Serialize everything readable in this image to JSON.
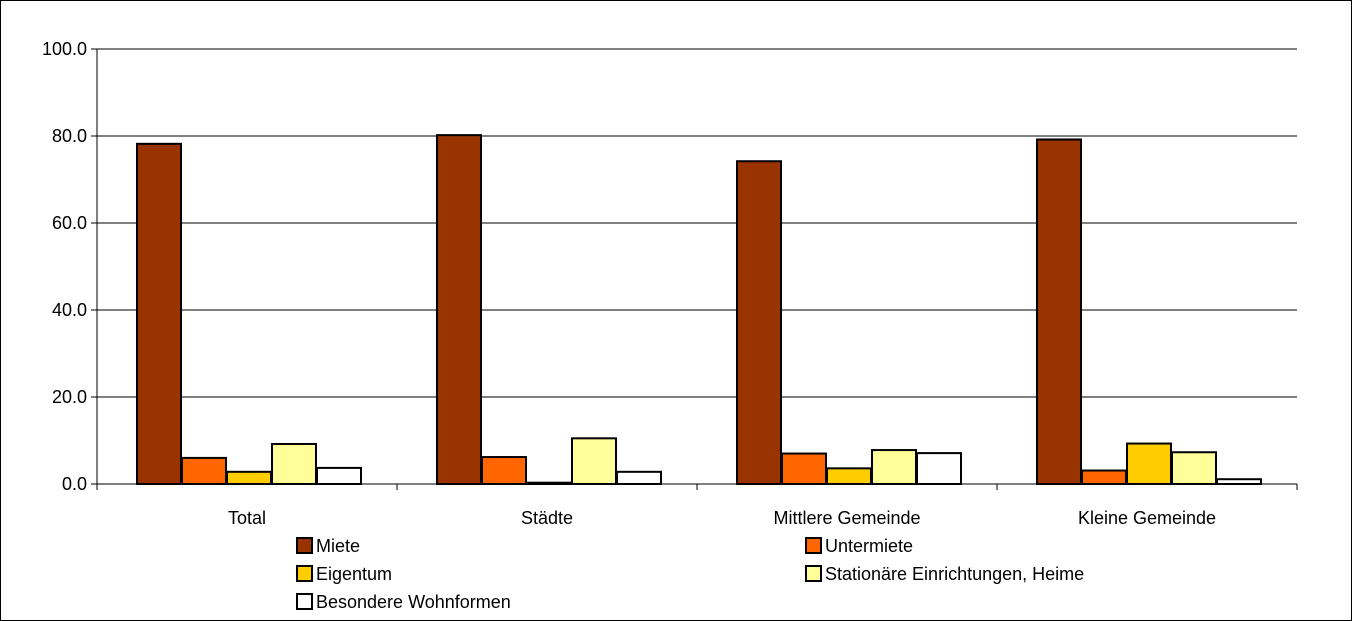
{
  "chart_data": {
    "type": "bar",
    "categories": [
      "Total",
      "Städte",
      "Mittlere Gemeinde",
      "Kleine Gemeinde"
    ],
    "series": [
      {
        "name": "Miete",
        "color": "#993300",
        "values": [
          78.2,
          80.2,
          74.2,
          79.2
        ]
      },
      {
        "name": "Untermiete",
        "color": "#FF6600",
        "values": [
          6.0,
          6.2,
          7.0,
          3.1
        ]
      },
      {
        "name": "Eigentum",
        "color": "#FFCC00",
        "values": [
          2.8,
          0.3,
          3.6,
          9.3
        ]
      },
      {
        "name": "Stationäre Einrichtungen, Heime",
        "color": "#FFFF99",
        "values": [
          9.2,
          10.5,
          7.8,
          7.3
        ]
      },
      {
        "name": "Besondere Wohnformen",
        "color": "#FFFFFF",
        "values": [
          3.7,
          2.8,
          7.1,
          1.1
        ]
      }
    ],
    "ylim": [
      0,
      100
    ],
    "yticks": [
      "0.0",
      "20.0",
      "40.0",
      "60.0",
      "80.0",
      "100.0"
    ],
    "grid": true,
    "legend_position": "bottom",
    "title": "",
    "xlabel": "",
    "ylabel": ""
  }
}
